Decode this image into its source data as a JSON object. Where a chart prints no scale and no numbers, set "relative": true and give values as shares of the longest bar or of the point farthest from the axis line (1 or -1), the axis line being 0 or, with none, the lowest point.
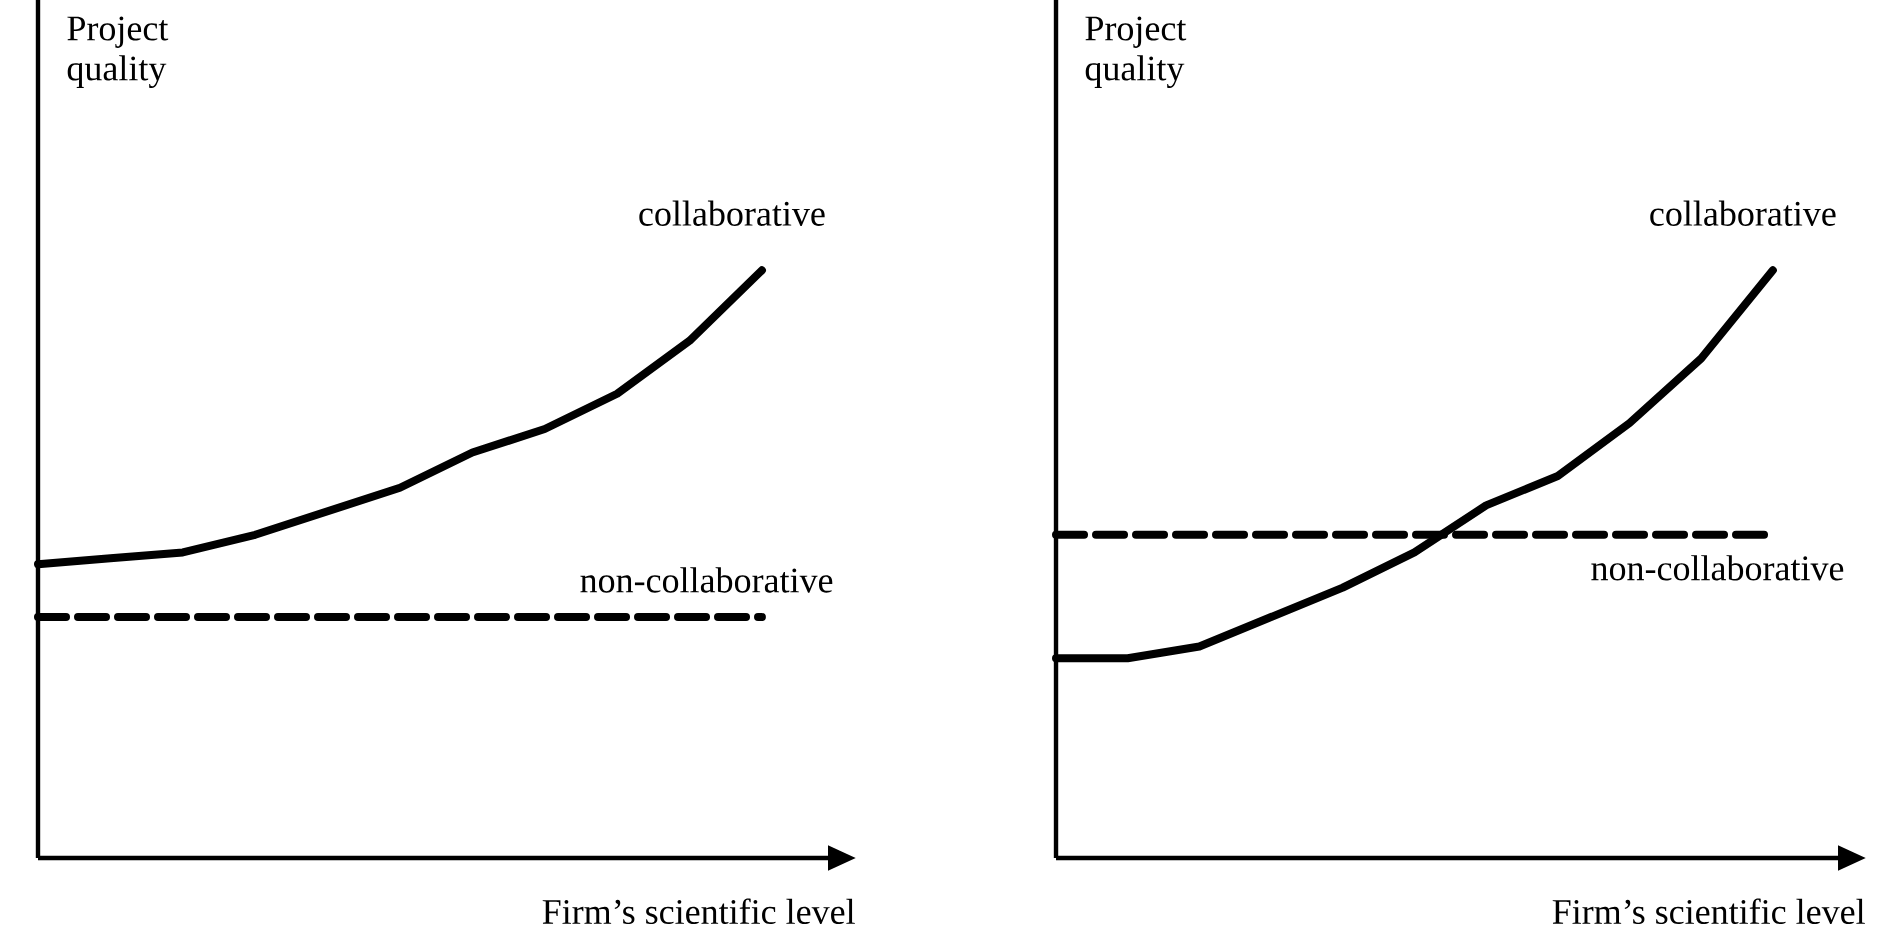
{
  "chart_data": [
    {
      "type": "line",
      "relative": true,
      "xlabel": "Firm’s scientific level",
      "ylabel": "Project quality",
      "legend": false,
      "categories": [
        null,
        null,
        null,
        null,
        null,
        null,
        null,
        null,
        null,
        null,
        null
      ],
      "series": [
        {
          "name": "collaborative",
          "color": "#000000",
          "line_style": "solid",
          "values": [
            0.5,
            0.51,
            0.52,
            0.55,
            0.59,
            0.63,
            0.69,
            0.73,
            0.79,
            0.88,
            1.0
          ]
        },
        {
          "name": "non-collaborative",
          "color": "#000000",
          "line_style": "dashed",
          "values": [
            0.41,
            0.41,
            0.41,
            0.41,
            0.41,
            0.41,
            0.41,
            0.41,
            0.41,
            0.41,
            0.41
          ]
        }
      ]
    },
    {
      "type": "line",
      "relative": true,
      "xlabel": "Firm’s scientific level",
      "ylabel": "Project quality",
      "legend": false,
      "categories": [
        null,
        null,
        null,
        null,
        null,
        null,
        null,
        null,
        null,
        null,
        null
      ],
      "series": [
        {
          "name": "collaborative",
          "color": "#000000",
          "line_style": "solid",
          "values": [
            0.34,
            0.34,
            0.36,
            0.41,
            0.46,
            0.52,
            0.6,
            0.65,
            0.74,
            0.85,
            1.0
          ]
        },
        {
          "name": "non-collaborative",
          "color": "#000000",
          "line_style": "dashed",
          "values": [
            0.55,
            0.55,
            0.55,
            0.55,
            0.55,
            0.55,
            0.55,
            0.55,
            0.55,
            0.55,
            0.55
          ]
        }
      ]
    }
  ]
}
